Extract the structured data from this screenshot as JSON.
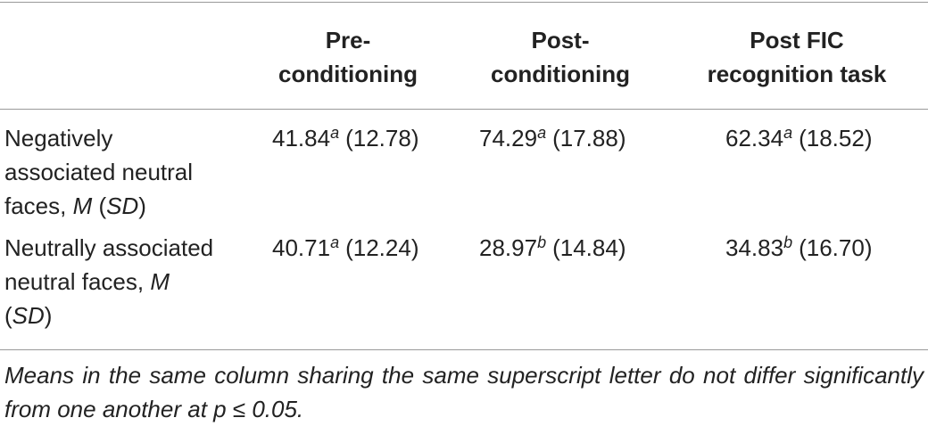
{
  "table": {
    "header": [
      "Pre-conditioning",
      "Post-conditioning",
      "Post FIC recognition task"
    ],
    "rows": [
      {
        "label_parts": [
          "Negatively associated neutral faces, ",
          "M",
          " (",
          "SD",
          ")"
        ],
        "cells": [
          {
            "mean": "41.84",
            "sup": "a",
            "sd": "(12.78)"
          },
          {
            "mean": "74.29",
            "sup": "a",
            "sd": "(17.88)"
          },
          {
            "mean": "62.34",
            "sup": "a",
            "sd": "(18.52)"
          }
        ]
      },
      {
        "label_parts": [
          "Neutrally associated neutral faces, ",
          "M",
          " (",
          "SD",
          ")"
        ],
        "cells": [
          {
            "mean": "40.71",
            "sup": "a",
            "sd": "(12.24)"
          },
          {
            "mean": "28.97",
            "sup": "b",
            "sd": "(14.84)"
          },
          {
            "mean": "34.83",
            "sup": "b",
            "sd": "(16.70)"
          }
        ]
      }
    ],
    "footnote": "Means in the same column sharing the same superscript letter do not differ significantly from one another at p ≤ 0.05."
  }
}
